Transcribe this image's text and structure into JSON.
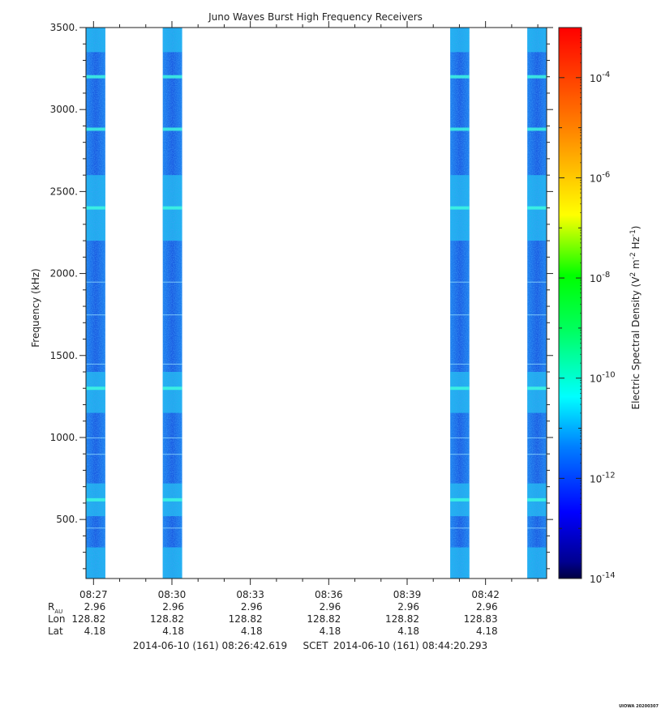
{
  "chart_data": {
    "type": "heatmap",
    "title": "Juno Waves Burst High Frequency Receivers",
    "ylabel": "Frequency (kHz)",
    "colorbar_label_text": "Electric Spectral Density (V",
    "colorbar_label_sup1": "2",
    "colorbar_label_mid": " m",
    "colorbar_label_sup2": "-2",
    "colorbar_label_mid2": " Hz",
    "colorbar_label_sup3": "-1",
    "colorbar_label_end": ")",
    "ylim": [
      140,
      3500
    ],
    "y_ticks": [
      "500.",
      "1000.",
      "1500.",
      "2000.",
      "2500.",
      "3000.",
      "3500."
    ],
    "y_tick_values": [
      500,
      1000,
      1500,
      2000,
      2500,
      3000,
      3500
    ],
    "x_tick_labels": [
      "08:27",
      "08:30",
      "08:33",
      "08:36",
      "08:39",
      "08:42"
    ],
    "x_tick_minutes": [
      27,
      30,
      33,
      36,
      39,
      42
    ],
    "x_start_minute": 26.711,
    "x_end_minute": 44.338,
    "bursts": [
      {
        "start": 26.711,
        "end": 27.45
      },
      {
        "start": 29.65,
        "end": 30.39
      },
      {
        "start": 40.65,
        "end": 41.38
      },
      {
        "start": 43.6,
        "end": 44.338
      }
    ],
    "bright_bands_khz": [
      3200,
      2880,
      2400,
      1300,
      620
    ],
    "colorbar": {
      "scale": "log",
      "range": [
        1e-14,
        0.001
      ],
      "tick_labels": [
        {
          "base": "10",
          "exp": "-4",
          "value": -4
        },
        {
          "base": "10",
          "exp": "-6",
          "value": -6
        },
        {
          "base": "10",
          "exp": "-8",
          "value": -8
        },
        {
          "base": "10",
          "exp": "-10",
          "value": -10
        },
        {
          "base": "10",
          "exp": "-12",
          "value": -12
        },
        {
          "base": "10",
          "exp": "-14",
          "value": -14
        }
      ],
      "colors": [
        "#000080",
        "#0000ff",
        "#00aaff",
        "#00ffff",
        "#00ff00",
        "#ffff00",
        "#ff8000",
        "#ff0000"
      ]
    },
    "ephemeris": {
      "row_labels": {
        "r": "R",
        "r_sub": "AU",
        "lon": "Lon",
        "lat": "Lat"
      },
      "r_values": [
        "2.96",
        "2.96",
        "2.96",
        "2.96",
        "2.96",
        "2.96"
      ],
      "lon_values": [
        "128.82",
        "128.82",
        "128.82",
        "128.82",
        "128.82",
        "128.83"
      ],
      "lat_values": [
        "4.18",
        "4.18",
        "4.18",
        "4.18",
        "4.18",
        "4.18"
      ]
    },
    "time_range": {
      "start": "2014-06-10 (161) 08:26:42.619",
      "mid": "SCET",
      "end": "2014-06-10 (161) 08:44:20.293"
    },
    "footer": "UIOWA 20200307"
  }
}
